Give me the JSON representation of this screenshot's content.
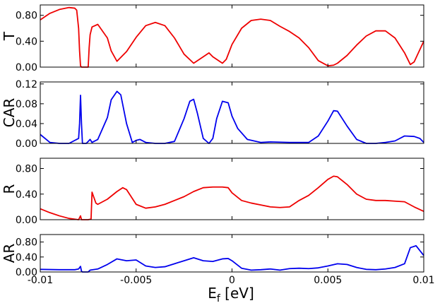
{
  "chart_data": {
    "type": "line",
    "shared_x": {
      "xlabel_main": "E",
      "xlabel_sub": "f",
      "xlabel_unit": " [eV]",
      "xlim": [
        -0.01,
        0.01
      ],
      "ticks": [
        -0.01,
        -0.005,
        0,
        0.005,
        0.01
      ],
      "tick_labels": [
        "-0.01",
        "-0.005",
        "0",
        "0.005",
        "0.01"
      ]
    },
    "panels": [
      {
        "id": "T",
        "ylabel": "T",
        "color": "#ee0000",
        "ylim": [
          0,
          0.96
        ],
        "yticks": [
          0,
          0.4,
          0.8
        ],
        "ytick_labels": [
          "0.00",
          "0.40",
          "0.80"
        ],
        "x": [
          -0.01,
          -0.0095,
          -0.009,
          -0.0085,
          -0.0082,
          -0.0081,
          -0.008,
          -0.00795,
          -0.0079,
          -0.00785,
          -0.0078,
          -0.0075,
          -0.00745,
          -0.0074,
          -0.0073,
          -0.007,
          -0.0065,
          -0.0063,
          -0.006,
          -0.0055,
          -0.005,
          -0.0045,
          -0.004,
          -0.0035,
          -0.003,
          -0.0025,
          -0.002,
          -0.0015,
          -0.0012,
          -0.001,
          -0.0005,
          -0.0003,
          0,
          0.0005,
          0.001,
          0.0015,
          0.002,
          0.0025,
          0.003,
          0.0035,
          0.004,
          0.0045,
          0.005,
          0.0053,
          0.0055,
          0.006,
          0.0065,
          0.007,
          0.0075,
          0.008,
          0.0085,
          0.009,
          0.0093,
          0.0095,
          0.01
        ],
        "y": [
          0.73,
          0.83,
          0.89,
          0.92,
          0.91,
          0.88,
          0.6,
          0.25,
          0.02,
          0,
          0,
          0,
          0.3,
          0.5,
          0.62,
          0.66,
          0.45,
          0.25,
          0.09,
          0.24,
          0.46,
          0.64,
          0.69,
          0.64,
          0.45,
          0.2,
          0.06,
          0.16,
          0.22,
          0.16,
          0.06,
          0.12,
          0.35,
          0.6,
          0.72,
          0.74,
          0.72,
          0.63,
          0.55,
          0.45,
          0.3,
          0.1,
          0.02,
          0.03,
          0.06,
          0.18,
          0.34,
          0.48,
          0.56,
          0.56,
          0.45,
          0.22,
          0.04,
          0.08,
          0.4
        ]
      },
      {
        "id": "CAR",
        "ylabel": "CAR",
        "color": "#0000ee",
        "ylim": [
          0,
          0.124
        ],
        "yticks": [
          0,
          0.04,
          0.08,
          0.12
        ],
        "ytick_labels": [
          "0.00",
          "0.04",
          "0.08",
          "0.12"
        ],
        "x": [
          -0.01,
          -0.0095,
          -0.009,
          -0.0085,
          -0.008,
          -0.00795,
          -0.0079,
          -0.00785,
          -0.0078,
          -0.0076,
          -0.0075,
          -0.0074,
          -0.0073,
          -0.007,
          -0.0065,
          -0.0063,
          -0.006,
          -0.0058,
          -0.0055,
          -0.0052,
          -0.005,
          -0.0048,
          -0.0045,
          -0.004,
          -0.0035,
          -0.003,
          -0.0025,
          -0.0022,
          -0.002,
          -0.0018,
          -0.0015,
          -0.0012,
          -0.001,
          -0.0008,
          -0.0005,
          -0.0002,
          0,
          0.0003,
          0.0008,
          0.0015,
          0.002,
          0.003,
          0.004,
          0.0045,
          0.005,
          0.0053,
          0.0055,
          0.006,
          0.0065,
          0.007,
          0.0075,
          0.008,
          0.0085,
          0.009,
          0.0095,
          0.0098,
          0.01
        ],
        "y": [
          0.018,
          0.002,
          0,
          0,
          0.01,
          0.04,
          0.097,
          0.04,
          0,
          0,
          0.004,
          0.008,
          0.002,
          0.008,
          0.052,
          0.088,
          0.105,
          0.098,
          0.04,
          0.002,
          0.006,
          0.008,
          0.002,
          0,
          0,
          0.004,
          0.05,
          0.085,
          0.089,
          0.06,
          0.01,
          0,
          0.01,
          0.05,
          0.085,
          0.082,
          0.055,
          0.03,
          0.008,
          0.002,
          0.003,
          0.002,
          0.002,
          0.015,
          0.045,
          0.066,
          0.065,
          0.035,
          0.008,
          0,
          0,
          0.002,
          0.005,
          0.015,
          0.014,
          0.01,
          0.002
        ]
      },
      {
        "id": "R",
        "ylabel": "R",
        "color": "#ee0000",
        "ylim": [
          0,
          0.96
        ],
        "yticks": [
          0,
          0.4,
          0.8
        ],
        "ytick_labels": [
          "0.00",
          "0.40",
          "0.80"
        ],
        "x": [
          -0.01,
          -0.0095,
          -0.009,
          -0.0085,
          -0.008,
          -0.0079,
          -0.00785,
          -0.0078,
          -0.0075,
          -0.00735,
          -0.0073,
          -0.0071,
          -0.007,
          -0.0065,
          -0.006,
          -0.0057,
          -0.0055,
          -0.005,
          -0.0045,
          -0.004,
          -0.0035,
          -0.003,
          -0.0025,
          -0.002,
          -0.0015,
          -0.001,
          -0.0005,
          -0.0002,
          0,
          0.0005,
          0.001,
          0.0015,
          0.002,
          0.0025,
          0.003,
          0.0035,
          0.004,
          0.0045,
          0.005,
          0.0053,
          0.0055,
          0.006,
          0.0065,
          0.007,
          0.0075,
          0.008,
          0.0085,
          0.009,
          0.0095,
          0.01
        ],
        "y": [
          0.17,
          0.11,
          0.06,
          0.02,
          0,
          0.06,
          0,
          0,
          0,
          0.01,
          0.43,
          0.26,
          0.24,
          0.32,
          0.44,
          0.5,
          0.47,
          0.24,
          0.18,
          0.2,
          0.24,
          0.3,
          0.36,
          0.44,
          0.5,
          0.51,
          0.51,
          0.5,
          0.42,
          0.3,
          0.26,
          0.23,
          0.2,
          0.19,
          0.2,
          0.3,
          0.38,
          0.5,
          0.63,
          0.68,
          0.67,
          0.55,
          0.4,
          0.32,
          0.3,
          0.3,
          0.29,
          0.28,
          0.2,
          0.13
        ]
      },
      {
        "id": "AR",
        "ylabel": "AR",
        "color": "#0000ee",
        "ylim": [
          0,
          1.0
        ],
        "yticks": [
          0,
          0.4,
          0.8
        ],
        "ytick_labels": [
          "0.00",
          "0.40",
          "0.80"
        ],
        "x": [
          -0.01,
          -0.009,
          -0.0085,
          -0.0082,
          -0.008,
          -0.0079,
          -0.00785,
          -0.0078,
          -0.0075,
          -0.0074,
          -0.007,
          -0.0065,
          -0.006,
          -0.0055,
          -0.005,
          -0.0045,
          -0.004,
          -0.0035,
          -0.003,
          -0.0025,
          -0.002,
          -0.0015,
          -0.001,
          -0.0005,
          -0.0002,
          0,
          0.0005,
          0.001,
          0.0015,
          0.002,
          0.0025,
          0.003,
          0.0035,
          0.004,
          0.0045,
          0.005,
          0.0055,
          0.006,
          0.0065,
          0.007,
          0.0075,
          0.008,
          0.0085,
          0.009,
          0.0093,
          0.0096,
          0.01
        ],
        "y": [
          0.07,
          0.06,
          0.06,
          0.06,
          0.08,
          0.15,
          0.02,
          0,
          0,
          0.05,
          0.08,
          0.2,
          0.35,
          0.3,
          0.32,
          0.16,
          0.12,
          0.14,
          0.22,
          0.3,
          0.38,
          0.3,
          0.28,
          0.35,
          0.36,
          0.3,
          0.1,
          0.05,
          0.06,
          0.08,
          0.05,
          0.09,
          0.1,
          0.09,
          0.11,
          0.16,
          0.22,
          0.2,
          0.12,
          0.07,
          0.06,
          0.08,
          0.12,
          0.22,
          0.65,
          0.7,
          0.44
        ]
      }
    ]
  }
}
